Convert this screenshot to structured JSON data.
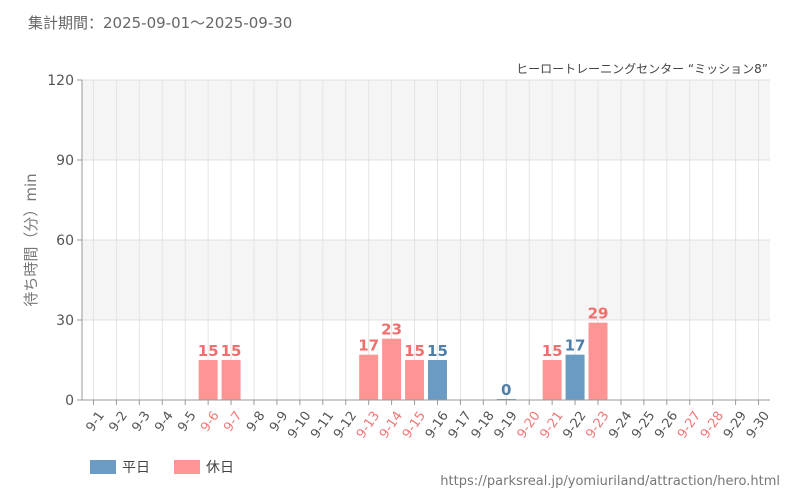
{
  "header": {
    "period": "集計期間：2025-09-01〜2025-09-30"
  },
  "colors": {
    "weekday": "#6b9bc3",
    "holiday": "#ff9494",
    "weekday_label": "#4f7fa8",
    "holiday_label": "#f06e6e",
    "axis_text": "#555555",
    "holiday_tick": "#f07878"
  },
  "footer": {
    "url": "https://parksreal.jp/yomiuriland/attraction/hero.html"
  },
  "chart_data": {
    "type": "bar",
    "subtitle": "ヒーロートレーニングセンター “ミッション8”",
    "ylabel": "待ち時間（分）min",
    "xlabel": "",
    "ylim": [
      0,
      120
    ],
    "yticks": [
      0,
      30,
      60,
      90,
      120
    ],
    "grid": true,
    "legend_position": "bottom-left",
    "categories": [
      "9-1",
      "9-2",
      "9-3",
      "9-4",
      "9-5",
      "9-6",
      "9-7",
      "9-8",
      "9-9",
      "9-10",
      "9-11",
      "9-12",
      "9-13",
      "9-14",
      "9-15",
      "9-16",
      "9-17",
      "9-18",
      "9-19",
      "9-20",
      "9-21",
      "9-22",
      "9-23",
      "9-24",
      "9-25",
      "9-26",
      "9-27",
      "9-28",
      "9-29",
      "9-30"
    ],
    "holiday_flags": [
      false,
      false,
      false,
      false,
      false,
      true,
      true,
      false,
      false,
      false,
      false,
      false,
      true,
      true,
      true,
      false,
      false,
      false,
      false,
      true,
      true,
      false,
      true,
      false,
      false,
      false,
      true,
      true,
      false,
      false
    ],
    "values": [
      null,
      null,
      null,
      null,
      null,
      15,
      15,
      null,
      null,
      null,
      null,
      null,
      17,
      23,
      15,
      15,
      null,
      null,
      0,
      null,
      15,
      17,
      29,
      null,
      null,
      null,
      null,
      null,
      null,
      null
    ],
    "series": [
      {
        "name": "平日"
      },
      {
        "name": "休日"
      }
    ]
  }
}
